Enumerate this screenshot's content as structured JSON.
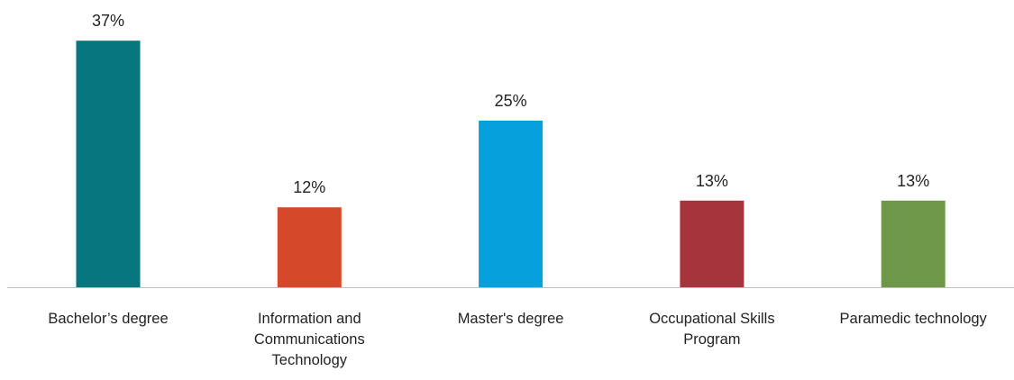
{
  "chart_data": {
    "type": "bar",
    "categories": [
      "Bachelor’s degree",
      "Information and\nCommunications\nTechnology",
      "Master's degree",
      "Occupational Skills\nProgram",
      "Paramedic technology"
    ],
    "values": [
      37,
      12,
      25,
      13,
      13
    ],
    "value_labels": [
      "37%",
      "12%",
      "25%",
      "13%",
      "13%"
    ],
    "colors": [
      "#08767e",
      "#d5492a",
      "#06a0dc",
      "#a5343c",
      "#6f9748"
    ]
  }
}
